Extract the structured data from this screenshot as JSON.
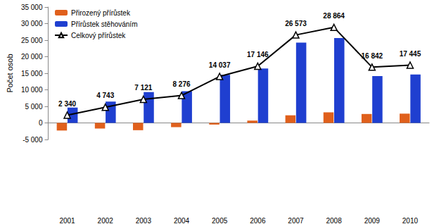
{
  "chart_data": {
    "type": "bar",
    "y_label": "Počet osob",
    "categories": [
      "2001",
      "2002",
      "2003",
      "2004",
      "2005",
      "2006",
      "2007",
      "2008",
      "2009",
      "2010"
    ],
    "series": [
      {
        "name": "Přirozený přírůstek",
        "type": "bar",
        "color": "#e0601c",
        "values": [
          -2300,
          -1700,
          -2200,
          -1300,
          -500,
          700,
          2300,
          3200,
          2700,
          2800
        ]
      },
      {
        "name": "Přírůstek stěhováním",
        "type": "bar",
        "color": "#1f3fd0",
        "values": [
          4640,
          6443,
          9321,
          9576,
          14537,
          16446,
          24273,
          25664,
          14142,
          14645
        ]
      },
      {
        "name": "Celkový přírůstek",
        "type": "line",
        "color": "#000000",
        "marker": "triangle",
        "line_style": "solid",
        "data_labels": true,
        "values": [
          2340,
          4743,
          7121,
          8276,
          14037,
          17146,
          26573,
          28864,
          16842,
          17445
        ],
        "value_labels": [
          "2 340",
          "4 743",
          "7 121",
          "8 276",
          "14 037",
          "17 146",
          "26 573",
          "28 864",
          "16 842",
          "17 445"
        ]
      }
    ],
    "ylim": [
      -5000,
      35000
    ],
    "yticks": [
      {
        "value": -5000,
        "label": "-5 000"
      },
      0,
      {
        "value": 5000,
        "label": "5 000"
      },
      {
        "value": 10000,
        "label": "10 000"
      },
      {
        "value": 15000,
        "label": "15 000"
      },
      {
        "value": 20000,
        "label": "20 000"
      },
      {
        "value": 25000,
        "label": "25 000"
      },
      {
        "value": 30000,
        "label": "30 000"
      },
      {
        "value": 35000,
        "label": "35 000"
      }
    ],
    "grid": false,
    "legend": "upper left"
  }
}
